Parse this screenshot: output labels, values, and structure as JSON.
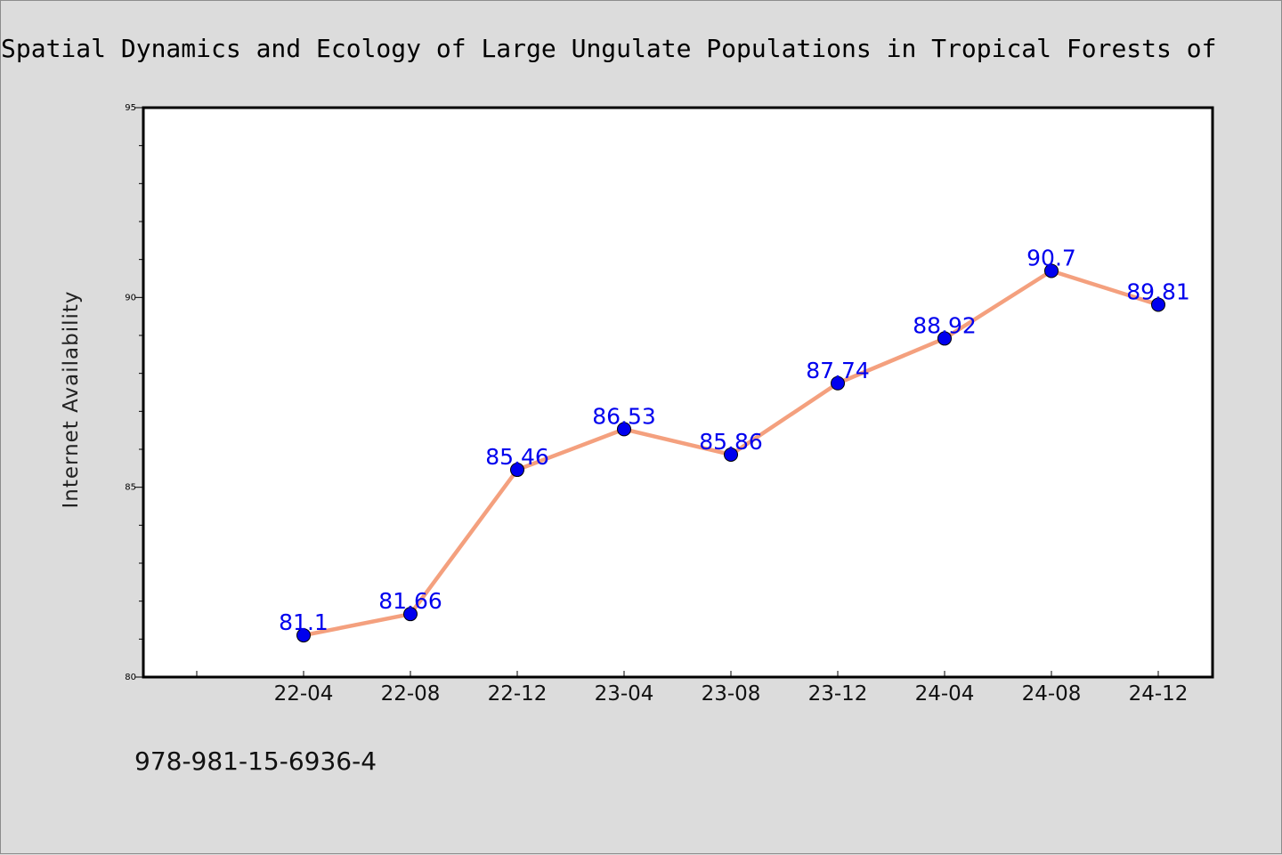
{
  "chart_data": {
    "type": "line",
    "title": "Spatial Dynamics and Ecology of Large Ungulate Populations in Tropical Forests of",
    "xlabel": "",
    "ylabel": "Internet Availability",
    "categories": [
      "22-04",
      "22-08",
      "22-12",
      "23-04",
      "23-08",
      "23-12",
      "24-04",
      "24-08",
      "24-12"
    ],
    "series": [
      {
        "values": [
          81.1,
          81.66,
          85.46,
          86.53,
          85.86,
          87.74,
          88.92,
          90.7,
          89.81
        ],
        "labels": [
          "81.1",
          "81.66",
          "85.46",
          "86.53",
          "85.86",
          "87.74",
          "88.92",
          "90.7",
          "89.81"
        ],
        "line_color": "#f4a07e",
        "marker_color": "#0000ee"
      }
    ],
    "ylim": [
      80,
      95
    ],
    "yticks": [
      "80",
      "85",
      "90",
      "95"
    ],
    "grid": false,
    "legend": "none"
  },
  "footer": {
    "isbn": "978-981-15-6936-4"
  }
}
